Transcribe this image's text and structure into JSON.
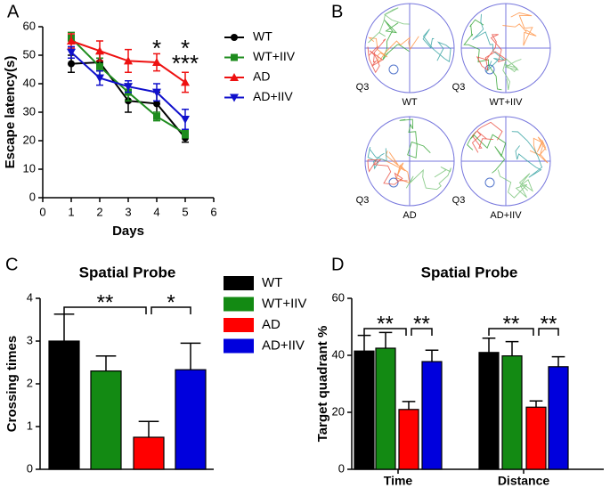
{
  "chart_data": [
    {
      "type": "line",
      "panel": "A",
      "xlabel": "Days",
      "ylabel": "Escape latency(s)",
      "x": [
        1,
        2,
        3,
        4,
        5
      ],
      "xlim": [
        0,
        6
      ],
      "xticks": [
        0,
        1,
        2,
        3,
        4,
        5,
        6
      ],
      "ylim": [
        0,
        60
      ],
      "yticks": [
        0,
        10,
        20,
        30,
        40,
        50,
        60
      ],
      "series": [
        {
          "name": "WT",
          "color": "#000000",
          "marker": "circle",
          "values": [
            47,
            47.5,
            34,
            33,
            21
          ],
          "errors": [
            3,
            3,
            4,
            4,
            1.5
          ]
        },
        {
          "name": "WT+IIV",
          "color": "#1e8c1e",
          "marker": "square",
          "values": [
            56,
            46,
            37,
            28.5,
            22.5
          ],
          "errors": [
            2,
            3,
            3,
            1.5,
            1.5
          ]
        },
        {
          "name": "AD",
          "color": "#ee1111",
          "marker": "triangle",
          "values": [
            55,
            51.5,
            48,
            47.5,
            40.5
          ],
          "errors": [
            2.5,
            3.5,
            4,
            3,
            3.5
          ]
        },
        {
          "name": "AD+IIV",
          "color": "#1111cc",
          "marker": "triangle-down",
          "values": [
            51,
            42,
            39,
            37,
            27.5
          ],
          "errors": [
            2,
            2.5,
            2,
            3,
            3.5
          ]
        }
      ],
      "annotations": [
        {
          "text": "*",
          "color": "#000000"
        },
        {
          "text": "*",
          "color": "#1111cc"
        },
        {
          "text": "***",
          "color": "#000000"
        }
      ]
    },
    {
      "type": "bar",
      "panel": "C",
      "title": "Spatial Probe",
      "ylabel": "Crossing times",
      "ylim": [
        0,
        4
      ],
      "yticks": [
        0,
        1,
        2,
        3,
        4
      ],
      "series": [
        {
          "name": "WT",
          "color": "#000000",
          "values": [
            3.0
          ],
          "errors": [
            0.63
          ]
        },
        {
          "name": "WT+IIV",
          "color": "#138a13",
          "values": [
            2.3
          ],
          "errors": [
            0.35
          ]
        },
        {
          "name": "AD",
          "color": "#ff0000",
          "values": [
            0.75
          ],
          "errors": [
            0.37
          ]
        },
        {
          "name": "AD+IIV",
          "color": "#0000dd",
          "values": [
            2.33
          ],
          "errors": [
            0.62
          ]
        }
      ],
      "annotations": [
        "**",
        "*"
      ]
    },
    {
      "type": "bar",
      "panel": "D",
      "title": "Spatial Probe",
      "ylabel": "Target quadrant %",
      "categories": [
        "Time",
        "Distance"
      ],
      "ylim": [
        0,
        60
      ],
      "yticks": [
        0,
        20,
        40,
        60
      ],
      "series": [
        {
          "color": "#000000",
          "values": [
            41.5,
            41
          ],
          "errors": [
            5.5,
            5
          ]
        },
        {
          "color": "#138a13",
          "values": [
            42.5,
            39.8
          ],
          "errors": [
            5.5,
            5
          ]
        },
        {
          "color": "#ff0000",
          "values": [
            21,
            21.8
          ],
          "errors": [
            2.8,
            2.2
          ]
        },
        {
          "color": "#0000dd",
          "values": [
            37.8,
            36
          ],
          "errors": [
            4,
            3.5
          ]
        }
      ],
      "annotations": [
        "**",
        "**",
        "**",
        "**"
      ]
    }
  ],
  "panel_b": {
    "label": "B",
    "maps": [
      {
        "name": "WT",
        "quadrant": "Q3"
      },
      {
        "name": "WT+IIV",
        "quadrant": "Q3"
      },
      {
        "name": "AD",
        "quadrant": "Q3"
      },
      {
        "name": "AD+IIV",
        "quadrant": "Q3"
      }
    ]
  }
}
